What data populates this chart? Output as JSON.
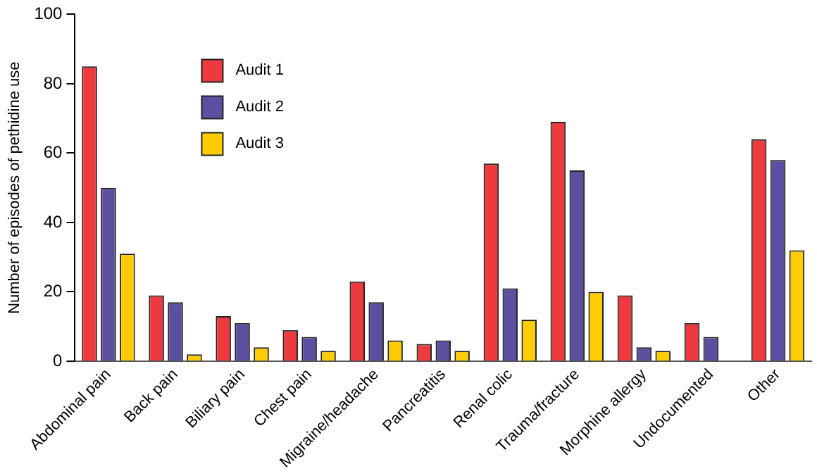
{
  "chart_data": {
    "type": "bar",
    "ylabel": "Number of episodes of pethidine use",
    "categories": [
      "Abdominal pain",
      "Back pain",
      "Biliary pain",
      "Chest pain",
      "Migraine/headache",
      "Pancreatitis",
      "Renal colic",
      "Trauma/fracture",
      "Morphine allergy",
      "Undocumented",
      "Other"
    ],
    "series": [
      {
        "name": "Audit 1",
        "color": "#ee3a3e",
        "values": [
          85,
          19,
          13,
          9,
          23,
          5,
          57,
          69,
          19,
          11,
          64
        ]
      },
      {
        "name": "Audit 2",
        "color": "#5b50a0",
        "values": [
          50,
          17,
          11,
          7,
          17,
          6,
          21,
          55,
          4,
          7,
          58
        ]
      },
      {
        "name": "Audit 3",
        "color": "#ffcc00",
        "values": [
          31,
          2,
          4,
          3,
          6,
          3,
          12,
          20,
          3,
          0,
          32
        ]
      }
    ],
    "ylim": [
      0,
      100
    ],
    "yticks": [
      0,
      20,
      40,
      60,
      80,
      100
    ],
    "grid": false,
    "legend": "top left"
  }
}
